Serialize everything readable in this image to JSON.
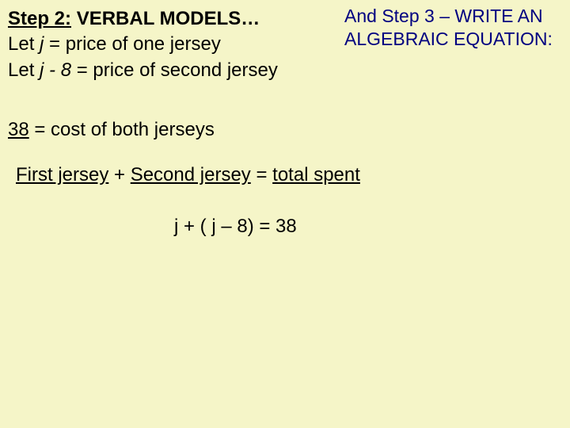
{
  "colors": {
    "background": "#f5f5c8",
    "text_primary": "#000000",
    "step3_text": "#000080"
  },
  "typography": {
    "font_family": "Comic Sans MS",
    "base_fontsize": 24,
    "step3_fontsize": 23
  },
  "left": {
    "title_a": "Step 2:",
    "title_b": "VERBAL MODELS…",
    "line1_a": "Let ",
    "line1_var": "j",
    "line1_b": "  = price of one jersey",
    "line2_a": "Let ",
    "line2_var": "j - 8",
    "line2_b": " = price of second jersey"
  },
  "right": {
    "text": "And Step 3 – WRITE AN ALGEBRAIC EQUATION:"
  },
  "cost": {
    "a": "38",
    "b": " = cost of both jerseys"
  },
  "eq": {
    "a": "First jersey",
    "b": "  + ",
    "c": "Second jersey",
    "d": "  = ",
    "e": "total spent"
  },
  "final": {
    "text": "j + ( j – 8) = 38"
  }
}
